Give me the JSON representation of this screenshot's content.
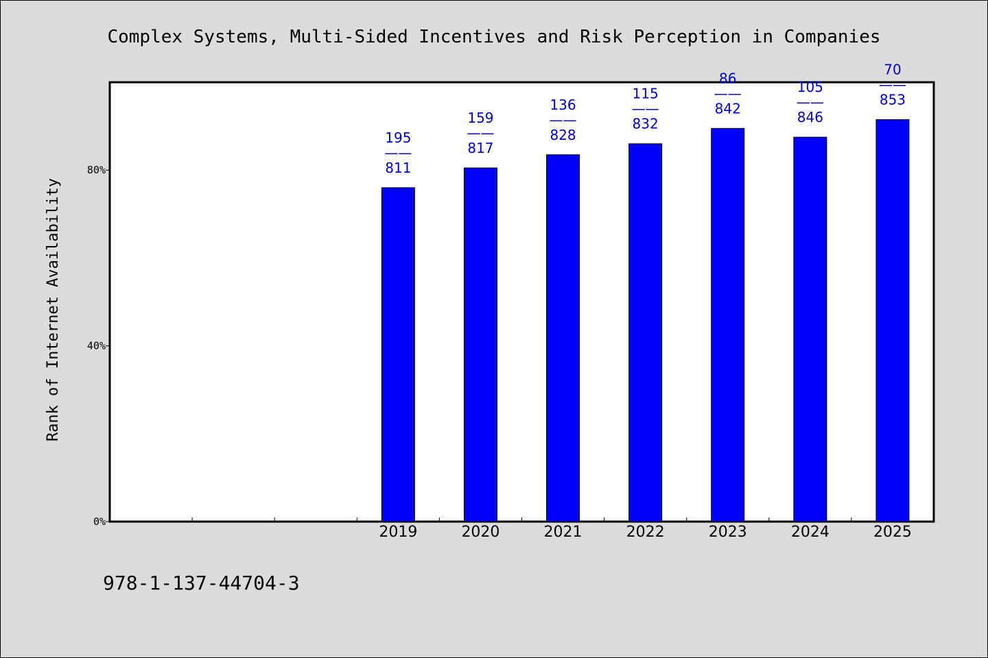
{
  "chart_data": {
    "type": "bar",
    "title": "Complex Systems, Multi-Sided Incentives and Risk Perception in Companies",
    "xlabel": "",
    "ylabel": "Rank of Internet Availability",
    "categories": [
      "",
      "",
      "",
      "2019",
      "2020",
      "2021",
      "2022",
      "2023",
      "2024",
      "2025"
    ],
    "values": [
      null,
      null,
      null,
      76,
      80.5,
      83.5,
      86,
      89.5,
      87.5,
      91.5
    ],
    "labels_top": [
      null,
      null,
      null,
      "195",
      "159",
      "136",
      "115",
      "86",
      "105",
      "70"
    ],
    "labels_bottom": [
      null,
      null,
      null,
      "811",
      "817",
      "828",
      "832",
      "842",
      "846",
      "853"
    ],
    "label_separator": "——",
    "ylim": [
      0,
      100
    ],
    "yticks": [
      0,
      40,
      80
    ],
    "ytick_labels": [
      "0%",
      "40%",
      "80%"
    ],
    "bar_color": "#0000ff",
    "label_color": "#0000cc",
    "grid": false,
    "legend": "none"
  },
  "footer": {
    "isbn": "978-1-137-44704-3"
  }
}
